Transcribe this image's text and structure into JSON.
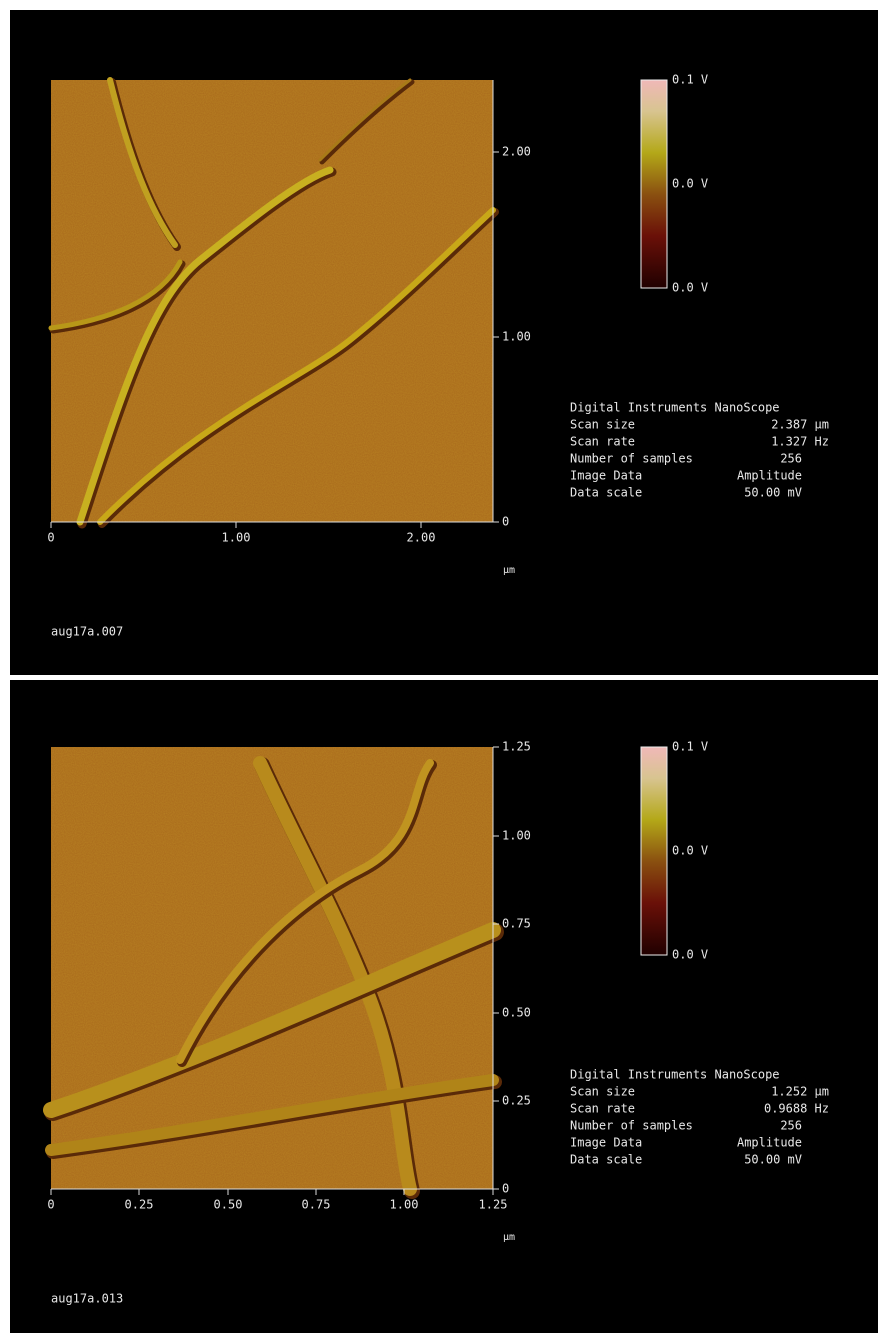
{
  "panels": [
    {
      "x_ticks": [
        "0",
        "1.00",
        "2.00"
      ],
      "y_ticks": [
        "2.00",
        "1.00",
        "0"
      ],
      "unit": "µm",
      "colorbar_labels": [
        "0.1 V",
        "0.0 V",
        "0.0 V"
      ],
      "info_title": "Digital Instruments NanoScope",
      "info": [
        [
          "Scan size",
          "2.387 µm"
        ],
        [
          "Scan rate",
          "1.327 Hz"
        ],
        [
          "Number of samples",
          "256"
        ],
        [
          "Image Data",
          "Amplitude"
        ],
        [
          "Data scale",
          "50.00 mV"
        ]
      ],
      "file": "aug17a.007"
    },
    {
      "x_ticks": [
        "0",
        "0.25",
        "0.50",
        "0.75",
        "1.00",
        "1.25"
      ],
      "y_ticks": [
        "1.25",
        "1.00",
        "0.75",
        "0.50",
        "0.25",
        "0"
      ],
      "unit": "µm",
      "colorbar_labels": [
        "0.1 V",
        "0.0 V",
        "0.0 V"
      ],
      "info_title": "Digital Instruments NanoScope",
      "info": [
        [
          "Scan size",
          "1.252 µm"
        ],
        [
          "Scan rate",
          "0.9688 Hz"
        ],
        [
          "Number of samples",
          "256"
        ],
        [
          "Image Data",
          "Amplitude"
        ],
        [
          "Data scale",
          "50.00 mV"
        ]
      ],
      "file": "aug17a.013"
    }
  ]
}
